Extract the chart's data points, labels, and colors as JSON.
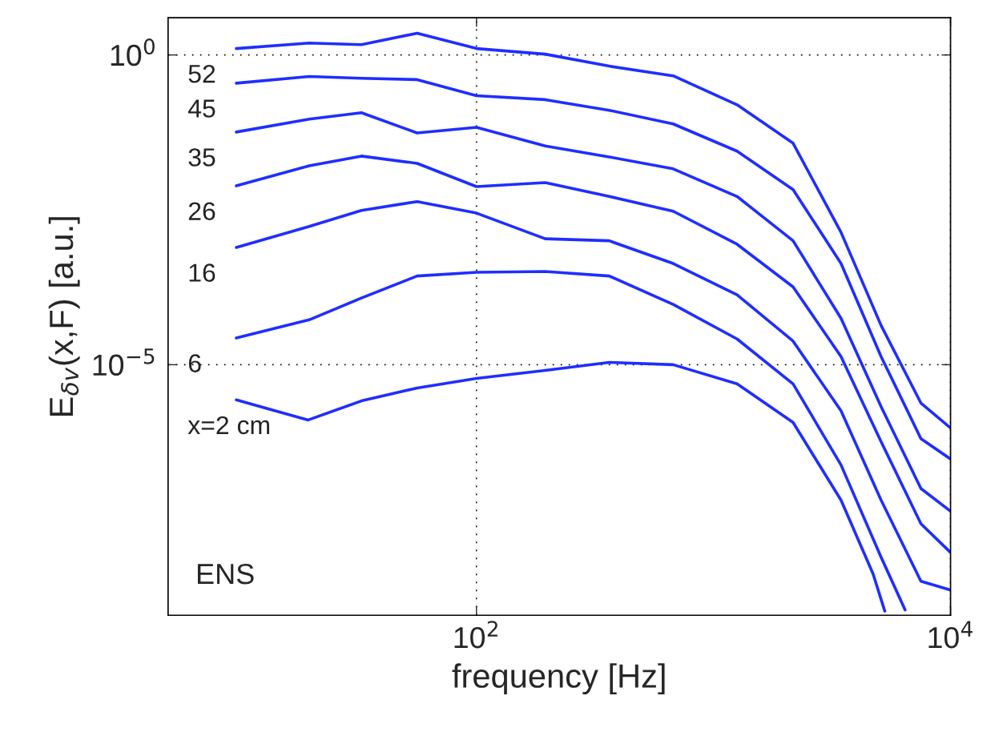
{
  "chart_data": {
    "type": "line",
    "xlabel": "frequency [Hz]",
    "ylabel": "E$_{δv}$(x,F) [a.u.]",
    "log": "xy",
    "grid": true,
    "line_style": "solid",
    "marker": "none",
    "xlim": [
      5,
      10000
    ],
    "ylim": [
      9e-10,
      4
    ],
    "xticks": [
      {
        "value": 100,
        "label": "10$^{2}$"
      },
      {
        "value": 10000,
        "label": "10$^{4}$"
      }
    ],
    "yticks": [
      {
        "value": 1e-05,
        "label": "10$^{−5}$"
      },
      {
        "value": 1,
        "label": "10$^{0}$"
      }
    ],
    "series": [
      {
        "name": "52",
        "color": "#1f2eff",
        "x": [
          9.7,
          19.7,
          32.7,
          56.2,
          100,
          195,
          363,
          676,
          1257,
          2166,
          3451,
          5093,
          7499,
          10000
        ],
        "values": [
          1.27,
          1.56,
          1.47,
          2.24,
          1.27,
          1.03,
          0.66,
          0.46,
          0.157,
          0.0376,
          0.00137,
          4.3e-05,
          2.4e-06,
          9.5e-07
        ]
      },
      {
        "name": "45",
        "color": "#1f2eff",
        "x": [
          9.7,
          19.7,
          32.7,
          56.2,
          100,
          195,
          363,
          676,
          1257,
          2166,
          3451,
          5093,
          7499,
          10000
        ],
        "values": [
          0.35,
          0.45,
          0.42,
          0.4,
          0.22,
          0.19,
          0.128,
          0.077,
          0.028,
          0.0067,
          0.00043,
          1.35e-05,
          6.4e-07,
          3e-07
        ]
      },
      {
        "name": "35",
        "color": "#1f2eff",
        "x": [
          9.7,
          19.7,
          32.7,
          56.2,
          100,
          195,
          363,
          676,
          1257,
          2166,
          3451,
          5093,
          7499,
          10000
        ],
        "values": [
          0.057,
          0.092,
          0.117,
          0.055,
          0.068,
          0.034,
          0.0226,
          0.0145,
          0.0052,
          0.001,
          5.6e-05,
          2.1e-06,
          1e-07,
          4.3e-08
        ]
      },
      {
        "name": "26",
        "color": "#1f2eff",
        "x": [
          9.7,
          19.7,
          32.7,
          56.2,
          100,
          195,
          363,
          676,
          1257,
          2166,
          3451,
          5093,
          7499,
          10000
        ],
        "values": [
          0.0077,
          0.0163,
          0.0233,
          0.0178,
          0.0075,
          0.0087,
          0.0052,
          0.003,
          0.00088,
          0.00018,
          1.35e-05,
          5.7e-07,
          2.7e-08,
          9.3e-09
        ]
      },
      {
        "name": "16",
        "color": "#1f2eff",
        "x": [
          9.7,
          19.7,
          32.7,
          56.2,
          100,
          195,
          363,
          676,
          1257,
          2166,
          3451,
          5093,
          7499,
          10000
        ],
        "values": [
          0.00078,
          0.0017,
          0.0031,
          0.0043,
          0.0028,
          0.00108,
          0.001,
          0.00043,
          0.000134,
          2.4e-05,
          1.8e-06,
          6.5e-08,
          3.2e-09,
          2.3e-09
        ]
      },
      {
        "name": "6",
        "color": "#1f2eff",
        "x": [
          9.7,
          19.7,
          32.7,
          56.2,
          100,
          195,
          363,
          676,
          1257,
          2166,
          3451,
          5093,
          6430
        ],
        "values": [
          2.7e-05,
          5.3e-05,
          0.000119,
          0.00027,
          0.00031,
          0.00032,
          0.00027,
          9.4e-05,
          2.6e-05,
          4.9e-06,
          2.4e-07,
          7.8e-09,
          1.1e-09
        ]
      },
      {
        "name": "x=2 cm",
        "color": "#1f2eff",
        "x": [
          9.7,
          19.5,
          32.7,
          56.2,
          100,
          195,
          363,
          676,
          1257,
          2166,
          3451,
          4710,
          5280
        ],
        "values": [
          2.7e-06,
          1.28e-06,
          2.6e-06,
          4.2e-06,
          6e-06,
          8.1e-06,
          1.09e-05,
          1e-05,
          4.9e-06,
          1.17e-06,
          6.5e-08,
          4.2e-09,
          1.05e-09
        ]
      }
    ],
    "annotations": [
      "ENS"
    ]
  }
}
